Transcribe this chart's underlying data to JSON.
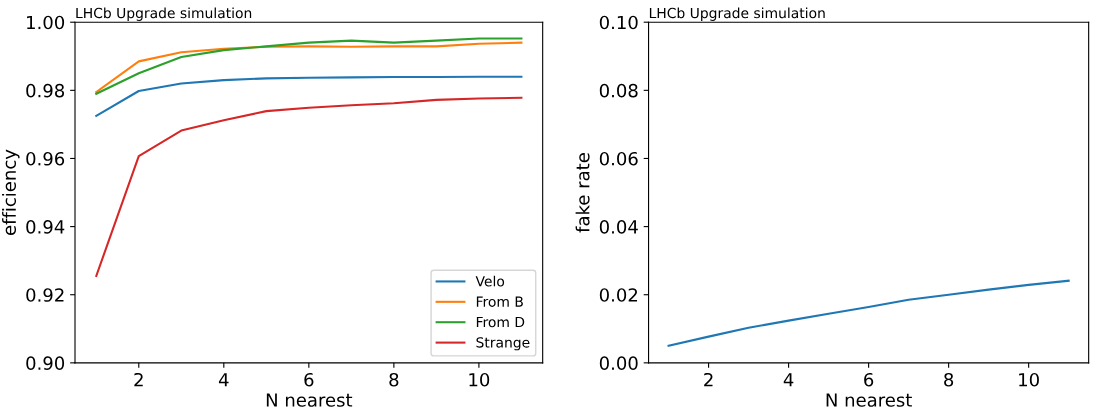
{
  "chart_data": [
    {
      "type": "line",
      "title": "LHCb Upgrade simulation",
      "xlabel": "N nearest",
      "ylabel": "efficiency",
      "x": [
        1,
        2,
        3,
        4,
        5,
        6,
        7,
        8,
        9,
        10,
        11
      ],
      "xlim": [
        0.5,
        11.5
      ],
      "xticks": [
        2,
        4,
        6,
        8,
        10
      ],
      "ylim": [
        0.9,
        1.0
      ],
      "yticks": [
        {
          "value": 0.9,
          "label": "0.90"
        },
        {
          "value": 0.92,
          "label": "0.92"
        },
        {
          "value": 0.94,
          "label": "0.94"
        },
        {
          "value": 0.96,
          "label": "0.96"
        },
        {
          "value": 0.98,
          "label": "0.98"
        },
        {
          "value": 1.0,
          "label": "1.00"
        }
      ],
      "legend": "bottom right",
      "grid": false,
      "series": [
        {
          "name": "Velo",
          "color": "#1f77b4",
          "values": [
            0.9725,
            0.9798,
            0.982,
            0.983,
            0.9835,
            0.9837,
            0.9838,
            0.9839,
            0.9839,
            0.984,
            0.984
          ]
        },
        {
          "name": "From B",
          "color": "#ff7f0e",
          "values": [
            0.9795,
            0.9885,
            0.9912,
            0.9922,
            0.9928,
            0.9929,
            0.9928,
            0.9929,
            0.9929,
            0.9937,
            0.994
          ]
        },
        {
          "name": "From D",
          "color": "#2ca02c",
          "values": [
            0.979,
            0.985,
            0.9898,
            0.9918,
            0.9929,
            0.994,
            0.9946,
            0.994,
            0.9946,
            0.9952,
            0.9952
          ]
        },
        {
          "name": "Strange",
          "color": "#d62728",
          "values": [
            0.9255,
            0.9607,
            0.9682,
            0.9712,
            0.9739,
            0.9749,
            0.9756,
            0.9762,
            0.9772,
            0.9776,
            0.9778
          ]
        }
      ]
    },
    {
      "type": "line",
      "title": "LHCb Upgrade simulation",
      "xlabel": "N nearest",
      "ylabel": "fake rate",
      "x": [
        1,
        2,
        3,
        4,
        5,
        6,
        7,
        8,
        9,
        10,
        11
      ],
      "xlim": [
        0.5,
        11.5
      ],
      "xticks": [
        2,
        4,
        6,
        8,
        10
      ],
      "ylim": [
        0.0,
        0.1
      ],
      "yticks": [
        {
          "value": 0.0,
          "label": "0.00"
        },
        {
          "value": 0.02,
          "label": "0.02"
        },
        {
          "value": 0.04,
          "label": "0.04"
        },
        {
          "value": 0.06,
          "label": "0.06"
        },
        {
          "value": 0.08,
          "label": "0.08"
        },
        {
          "value": 0.1,
          "label": "0.10"
        }
      ],
      "legend": false,
      "grid": false,
      "series": [
        {
          "color": "#1f77b4",
          "values": [
            0.005,
            0.0077,
            0.0103,
            0.0124,
            0.0144,
            0.0164,
            0.0185,
            0.02,
            0.0215,
            0.0229,
            0.0241
          ]
        }
      ]
    }
  ]
}
